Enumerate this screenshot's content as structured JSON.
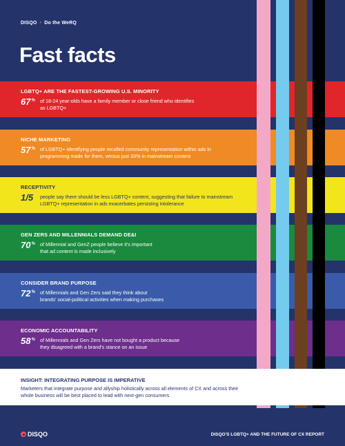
{
  "header": {
    "brand": "DISQO",
    "separator": "•",
    "subtitle": "Do the WeRQ"
  },
  "title": "Fast facts",
  "stripes": [
    {
      "name": "pink",
      "color": "#f4a8c8"
    },
    {
      "name": "light-blue",
      "color": "#74cbee"
    },
    {
      "name": "brown",
      "color": "#6b3f1f"
    },
    {
      "name": "black",
      "color": "#000000"
    }
  ],
  "bands": [
    {
      "key": "minority",
      "color": "#e0262b",
      "title": "LGBTQ+ are the fastest-growing U.S. minority",
      "stat": "67",
      "pct": "%",
      "desc": "of 18-24 year-olds have a family member or close friend who identifies as LGBTQ+"
    },
    {
      "key": "niche",
      "color": "#f08a24",
      "title": "Niche marketing",
      "stat": "57",
      "pct": "%",
      "desc": "of LGBTQ+ identifying people recalled community representation within ads in programming made for them, versus just 33% in mainstream content"
    },
    {
      "key": "receptivity",
      "color": "#f2e51c",
      "title": "Receptivity",
      "stat": "1/5",
      "pct": "",
      "desc": "people say there should be less LGBTQ+ content, suggesting that failure to mainstream LGBTQ+ representation in ads exacerbates persisting intolerance"
    },
    {
      "key": "dei",
      "color": "#1a8a3e",
      "title": "Gen Zers and Millennials demand DE&I",
      "stat": "70",
      "pct": "%",
      "desc": "of Millennial and GenZ people believe it's important that ad content is made inclusively"
    },
    {
      "key": "purpose",
      "color": "#3a5ba9",
      "title": "Consider brand purpose",
      "stat": "72",
      "pct": "%",
      "desc": "of Millennials and Gen Zers said they think about brands' social-political activities when making purchases"
    },
    {
      "key": "accountability",
      "color": "#6d2e8c",
      "title": "Economic accountability",
      "stat": "58",
      "pct": "%",
      "desc": "of Millennials and Gen Zers have not bought a product because they disagreed with a brand's stance on an issue"
    }
  ],
  "insight": {
    "title": "Insight: Integrating purpose is imperative",
    "desc": "Marketers that integrate purpose and allyship holistically across all elements of CX and across their whole business will be best placed to lead with next-gen consumers"
  },
  "footer": {
    "logo": "DISQO",
    "report": "DISQO'S LGBTQ+ AND THE FUTURE OF CX REPORT"
  }
}
